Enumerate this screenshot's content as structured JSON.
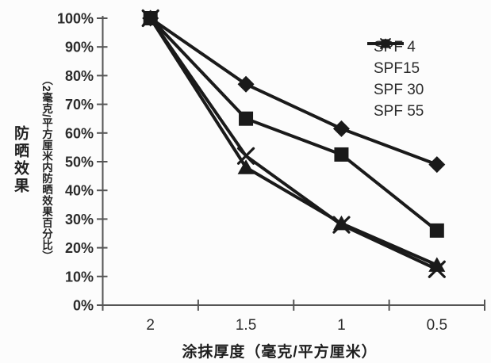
{
  "chart_data": {
    "type": "line",
    "categories": [
      "2",
      "1.5",
      "1",
      "0.5"
    ],
    "series": [
      {
        "name": "SPF 4",
        "marker": "diamond",
        "values": [
          100,
          77,
          61.5,
          49
        ]
      },
      {
        "name": "SPF15",
        "marker": "square",
        "values": [
          100,
          65,
          52.5,
          26
        ]
      },
      {
        "name": "SPF 30",
        "marker": "triangle",
        "values": [
          100,
          48,
          28.5,
          14
        ]
      },
      {
        "name": "SPF 55",
        "marker": "x",
        "values": [
          100,
          52,
          28,
          12.5
        ]
      }
    ],
    "xlabel": "涂抹厚度（毫克/平方厘米）",
    "ylabel": "防晒效果",
    "ylabel_sub": "（2毫克/平方厘米内防晒效果百分比）",
    "y_tick_labels": [
      "0%",
      "10%",
      "20%",
      "30%",
      "40%",
      "50%",
      "60%",
      "70%",
      "80%",
      "90%",
      "100%"
    ],
    "ylim": [
      0,
      100
    ],
    "grid": false,
    "legend_position": "upper-right",
    "colors": {
      "line": "#1a1a1a",
      "axis": "#555555",
      "text": "#2b2b2b",
      "background": "#fcfcfc"
    }
  }
}
